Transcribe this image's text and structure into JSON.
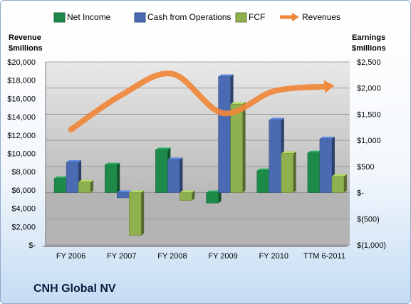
{
  "chart_data": {
    "type": "bar",
    "title": "CNH Global NV",
    "categories": [
      "FY 2006",
      "FY 2007",
      "FY 2008",
      "FY 2009",
      "FY 2010",
      "TTM 6-2011"
    ],
    "bar_axis": {
      "label_line1": "Earnings",
      "label_line2": "$millions",
      "ylim": [
        -1000,
        2500
      ],
      "ticks": [
        -1000,
        -500,
        0,
        500,
        1000,
        1500,
        2000,
        2500
      ],
      "tick_labels": [
        "$(1,000)",
        "$(500)",
        "$-",
        "$500",
        "$1,000",
        "$1,500",
        "$2,000",
        "$2,500"
      ]
    },
    "line_axis": {
      "label_line1": "Revenue",
      "label_line2": "$millions",
      "ylim": [
        0,
        20000
      ],
      "ticks": [
        0,
        2000,
        4000,
        6000,
        8000,
        10000,
        12000,
        14000,
        16000,
        18000,
        20000
      ],
      "tick_labels": [
        "$-",
        "$2,000",
        "$4,000",
        "$6,000",
        "$8,000",
        "$10,000",
        "$12,000",
        "$14,000",
        "$16,000",
        "$18,000",
        "$20,000"
      ]
    },
    "series": [
      {
        "name": "Net Income",
        "type": "bar",
        "color": "#1e8a4a",
        "values": [
          270,
          530,
          820,
          -200,
          420,
          760
        ]
      },
      {
        "name": "Cash from Operations",
        "type": "bar",
        "color": "#4a6bb2",
        "values": [
          580,
          -100,
          630,
          2220,
          1390,
          1030
        ]
      },
      {
        "name": "FCF",
        "type": "bar",
        "color": "#8fb04e",
        "values": [
          200,
          -820,
          -150,
          1690,
          750,
          310
        ]
      },
      {
        "name": "Revenues",
        "type": "line",
        "color": "#f0873a",
        "values": [
          12600,
          16400,
          18700,
          14400,
          16800,
          17300
        ]
      }
    ],
    "legend_position": "top",
    "grid": true
  }
}
